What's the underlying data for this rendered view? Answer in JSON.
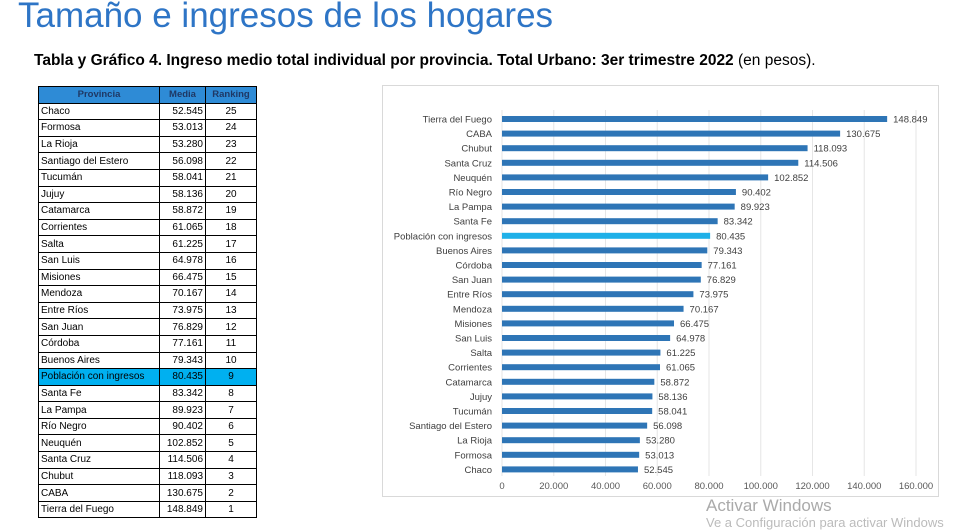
{
  "header": {
    "title": "Tamaño e ingresos de los hogares",
    "subtitle_bold": "Tabla y Gráfico 4. Ingreso medio total individual por provincia. Total Urbano: 3er trimestre 2022",
    "subtitle_rest": " (en pesos)."
  },
  "table": {
    "columns": [
      "Provincia",
      "Media",
      "Ranking"
    ],
    "highlight_color": "#00b0f0",
    "rows": [
      [
        "Chaco",
        "52.545",
        "25"
      ],
      [
        "Formosa",
        "53.013",
        "24"
      ],
      [
        "La Rioja",
        "53.280",
        "23"
      ],
      [
        "Santiago del Estero",
        "56.098",
        "22"
      ],
      [
        "Tucumán",
        "58.041",
        "21"
      ],
      [
        "Jujuy",
        "58.136",
        "20"
      ],
      [
        "Catamarca",
        "58.872",
        "19"
      ],
      [
        "Corrientes",
        "61.065",
        "18"
      ],
      [
        "Salta",
        "61.225",
        "17"
      ],
      [
        "San Luis",
        "64.978",
        "16"
      ],
      [
        "Misiones",
        "66.475",
        "15"
      ],
      [
        "Mendoza",
        "70.167",
        "14"
      ],
      [
        "Entre Ríos",
        "73.975",
        "13"
      ],
      [
        "San Juan",
        "76.829",
        "12"
      ],
      [
        "Córdoba",
        "77.161",
        "11"
      ],
      [
        "Buenos Aires",
        "79.343",
        "10"
      ],
      [
        "Población con ingresos",
        "80.435",
        "9"
      ],
      [
        "Santa Fe",
        "83.342",
        "8"
      ],
      [
        "La Pampa",
        "89.923",
        "7"
      ],
      [
        "Río Negro",
        "90.402",
        "6"
      ],
      [
        "Neuquén",
        "102.852",
        "5"
      ],
      [
        "Santa Cruz",
        "114.506",
        "4"
      ],
      [
        "Chubut",
        "118.093",
        "3"
      ],
      [
        "CABA",
        "130.675",
        "2"
      ],
      [
        "Tierra del Fuego",
        "148.849",
        "1"
      ]
    ]
  },
  "chart_data": {
    "type": "bar",
    "orientation": "horizontal",
    "categories": [
      "Tierra del Fuego",
      "CABA",
      "Chubut",
      "Santa Cruz",
      "Neuquén",
      "Río Negro",
      "La Pampa",
      "Santa Fe",
      "Población con ingresos",
      "Buenos Aires",
      "Córdoba",
      "San Juan",
      "Entre Ríos",
      "Mendoza",
      "Misiones",
      "San Luis",
      "Salta",
      "Corrientes",
      "Catamarca",
      "Jujuy",
      "Tucumán",
      "Santiago del Estero",
      "La Rioja",
      "Formosa",
      "Chaco"
    ],
    "values": [
      148849,
      130675,
      118093,
      114506,
      102852,
      90402,
      89923,
      83342,
      80435,
      79343,
      77161,
      76829,
      73975,
      70167,
      66475,
      64978,
      61225,
      61065,
      58872,
      58136,
      58041,
      56098,
      53280,
      53013,
      52545
    ],
    "labels": [
      "148.849",
      "130.675",
      "118.093",
      "114.506",
      "102.852",
      "90.402",
      "89.923",
      "83.342",
      "80.435",
      "79.343",
      "77.161",
      "76.829",
      "73.975",
      "70.167",
      "66.475",
      "64.978",
      "61.225",
      "61.065",
      "58.872",
      "58.136",
      "58.041",
      "56.098",
      "53.280",
      "53.013",
      "52.545"
    ],
    "highlight": "Población con ingresos",
    "xlim": [
      0,
      160000
    ],
    "xticks": [
      "0",
      "20.000",
      "40.000",
      "60.000",
      "80.000",
      "100.000",
      "120.000",
      "140.000",
      "160.000"
    ],
    "grid": true,
    "bar_color": "#2e75b6",
    "highlight_color": "#1fb0e8"
  },
  "watermark": {
    "line1": "Activar Windows",
    "line2": "Ve a Configuración para activar Windows"
  }
}
